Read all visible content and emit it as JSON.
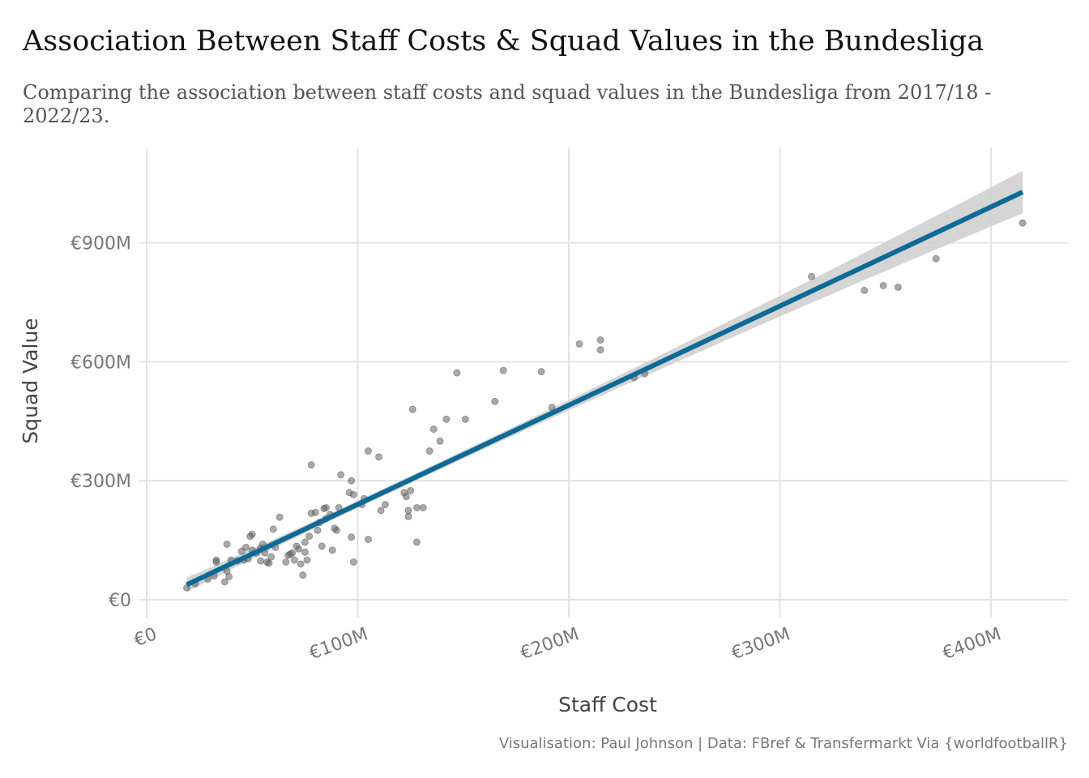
{
  "title": "Association Between Staff Costs & Squad Values in the Bundesliga",
  "subtitle": "Comparing the association between staff costs and squad values in the Bundesliga from 2017/18 - 2022/23.",
  "caption": "Visualisation: Paul Johnson | Data: FBref & Transfermarkt Via {worldfootballR}",
  "chart_data": {
    "type": "scatter",
    "title": "Association Between Staff Costs & Squad Values in the Bundesliga",
    "subtitle": "Comparing the association between staff costs and squad values in the Bundesliga from 2017/18 - 2022/23.",
    "xlabel": "Staff Cost",
    "ylabel": "Squad Value",
    "units": "€ millions",
    "xlim": [
      0,
      420
    ],
    "ylim": [
      0,
      1030
    ],
    "x_ticks": [
      0,
      100,
      200,
      300,
      400
    ],
    "x_tick_labels": [
      "€0",
      "€100M",
      "€200M",
      "€300M",
      "€400M"
    ],
    "y_ticks": [
      0,
      300,
      600,
      900
    ],
    "y_tick_labels": [
      "€0",
      "€300M",
      "€600M",
      "€900M"
    ],
    "grid": true,
    "point_color": "#555555",
    "trend_color": "#0e6a96",
    "band_color": "#d0d0d0",
    "trend_line": {
      "x": [
        19,
        415
      ],
      "y": [
        38,
        1028
      ]
    },
    "confidence_band": {
      "x": [
        19,
        415
      ],
      "lower": [
        20,
        975
      ],
      "upper": [
        56,
        1082
      ]
    },
    "points": [
      {
        "x": 19,
        "y": 30
      },
      {
        "x": 23,
        "y": 40
      },
      {
        "x": 29,
        "y": 52
      },
      {
        "x": 32,
        "y": 60
      },
      {
        "x": 33,
        "y": 95
      },
      {
        "x": 33,
        "y": 100
      },
      {
        "x": 37,
        "y": 45
      },
      {
        "x": 38,
        "y": 72
      },
      {
        "x": 38,
        "y": 140
      },
      {
        "x": 39,
        "y": 58
      },
      {
        "x": 40,
        "y": 100
      },
      {
        "x": 43,
        "y": 98
      },
      {
        "x": 45,
        "y": 122
      },
      {
        "x": 46,
        "y": 100
      },
      {
        "x": 47,
        "y": 132
      },
      {
        "x": 48,
        "y": 103
      },
      {
        "x": 49,
        "y": 160
      },
      {
        "x": 50,
        "y": 165
      },
      {
        "x": 50,
        "y": 125
      },
      {
        "x": 52,
        "y": 118
      },
      {
        "x": 54,
        "y": 98
      },
      {
        "x": 54,
        "y": 130
      },
      {
        "x": 55,
        "y": 140
      },
      {
        "x": 56,
        "y": 118
      },
      {
        "x": 57,
        "y": 95
      },
      {
        "x": 58,
        "y": 92
      },
      {
        "x": 59,
        "y": 108
      },
      {
        "x": 60,
        "y": 178
      },
      {
        "x": 61,
        "y": 132
      },
      {
        "x": 63,
        "y": 208
      },
      {
        "x": 66,
        "y": 95
      },
      {
        "x": 67,
        "y": 112
      },
      {
        "x": 68,
        "y": 115
      },
      {
        "x": 69,
        "y": 118
      },
      {
        "x": 70,
        "y": 100
      },
      {
        "x": 71,
        "y": 135
      },
      {
        "x": 72,
        "y": 128
      },
      {
        "x": 73,
        "y": 90
      },
      {
        "x": 74,
        "y": 62
      },
      {
        "x": 75,
        "y": 145
      },
      {
        "x": 75,
        "y": 120
      },
      {
        "x": 76,
        "y": 100
      },
      {
        "x": 77,
        "y": 160
      },
      {
        "x": 78,
        "y": 218
      },
      {
        "x": 78,
        "y": 340
      },
      {
        "x": 80,
        "y": 220
      },
      {
        "x": 81,
        "y": 175
      },
      {
        "x": 82,
        "y": 195
      },
      {
        "x": 83,
        "y": 135
      },
      {
        "x": 84,
        "y": 230
      },
      {
        "x": 85,
        "y": 232
      },
      {
        "x": 85,
        "y": 205
      },
      {
        "x": 87,
        "y": 215
      },
      {
        "x": 88,
        "y": 125
      },
      {
        "x": 89,
        "y": 180
      },
      {
        "x": 90,
        "y": 175
      },
      {
        "x": 91,
        "y": 232
      },
      {
        "x": 92,
        "y": 315
      },
      {
        "x": 96,
        "y": 270
      },
      {
        "x": 97,
        "y": 300
      },
      {
        "x": 97,
        "y": 158
      },
      {
        "x": 98,
        "y": 265
      },
      {
        "x": 98,
        "y": 95
      },
      {
        "x": 102,
        "y": 240
      },
      {
        "x": 103,
        "y": 255
      },
      {
        "x": 105,
        "y": 375
      },
      {
        "x": 105,
        "y": 152
      },
      {
        "x": 110,
        "y": 360
      },
      {
        "x": 111,
        "y": 225
      },
      {
        "x": 113,
        "y": 240
      },
      {
        "x": 122,
        "y": 270
      },
      {
        "x": 123,
        "y": 260
      },
      {
        "x": 124,
        "y": 225
      },
      {
        "x": 124,
        "y": 210
      },
      {
        "x": 125,
        "y": 275
      },
      {
        "x": 126,
        "y": 480
      },
      {
        "x": 128,
        "y": 232
      },
      {
        "x": 128,
        "y": 145
      },
      {
        "x": 131,
        "y": 232
      },
      {
        "x": 134,
        "y": 375
      },
      {
        "x": 136,
        "y": 430
      },
      {
        "x": 139,
        "y": 400
      },
      {
        "x": 142,
        "y": 455
      },
      {
        "x": 147,
        "y": 572
      },
      {
        "x": 151,
        "y": 455
      },
      {
        "x": 165,
        "y": 500
      },
      {
        "x": 169,
        "y": 578
      },
      {
        "x": 187,
        "y": 575
      },
      {
        "x": 192,
        "y": 485
      },
      {
        "x": 205,
        "y": 645
      },
      {
        "x": 215,
        "y": 655
      },
      {
        "x": 215,
        "y": 630
      },
      {
        "x": 231,
        "y": 560
      },
      {
        "x": 236,
        "y": 570
      },
      {
        "x": 315,
        "y": 815
      },
      {
        "x": 340,
        "y": 780
      },
      {
        "x": 349,
        "y": 792
      },
      {
        "x": 356,
        "y": 788
      },
      {
        "x": 374,
        "y": 860
      },
      {
        "x": 415,
        "y": 950
      }
    ]
  }
}
